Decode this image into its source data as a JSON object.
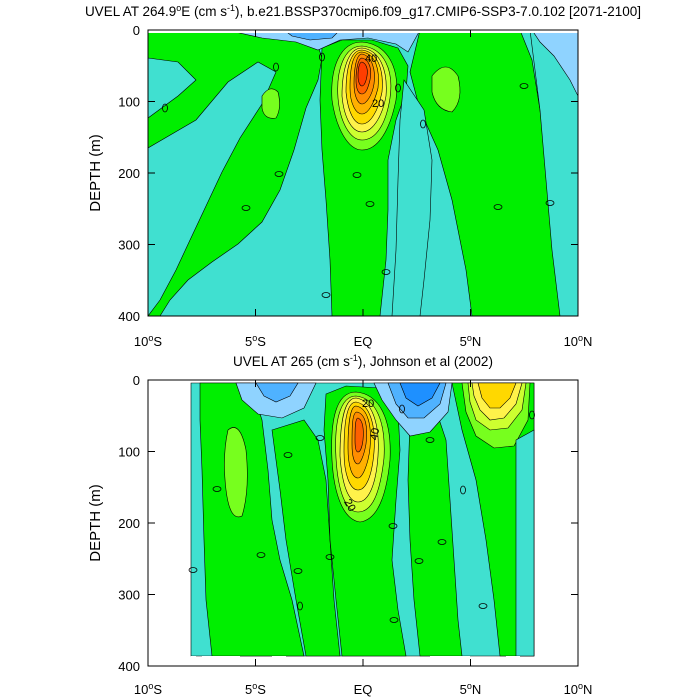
{
  "colors": {
    "c_neg2": "#1e90ff",
    "c_neg1": "#4fb2ff",
    "c_neg0": "#8fd3ff",
    "c_zero": "#40e0d0",
    "c_pos1": "#00ef00",
    "c_pos2": "#77ff1e",
    "c_pos3": "#cdff30",
    "c_pos4": "#fff24a",
    "c_pos5": "#ffd800",
    "c_pos6": "#ffb000",
    "c_pos7": "#ff8c00",
    "c_pos8": "#ff6000",
    "c_pos9": "#ff3d00"
  },
  "chart_data": [
    {
      "type": "heatmap",
      "title_main": "UVEL AT 264.9",
      "title_deg": "o",
      "title_mid": "E (cm s",
      "title_sup": "-1",
      "title_rest": "), b.e21.BSSP370cmip6.f09_g17.CMIP6-SSP3-7.0.102 [2071-2100]",
      "ylabel": "DEPTH (m)",
      "ylim": [
        400,
        0
      ],
      "xlim": [
        -10,
        10
      ],
      "yticks": [
        "0",
        "100",
        "200",
        "300",
        "400"
      ],
      "xticks": [
        {
          "num": "10",
          "deg": "o",
          "hem": "S"
        },
        {
          "num": "5",
          "deg": "o",
          "hem": "S"
        },
        {
          "num": "EQ",
          "deg": "",
          "hem": ""
        },
        {
          "num": "5",
          "deg": "o",
          "hem": "N"
        },
        {
          "num": "10",
          "deg": "o",
          "hem": "N"
        }
      ],
      "contour_labels": [
        "0",
        "0",
        "0",
        "0",
        "0",
        "0",
        "0",
        "0",
        "0",
        "0",
        "0",
        "0",
        "0",
        "40",
        "20"
      ],
      "core_max_approx": 60
    },
    {
      "type": "heatmap",
      "title_main": "UVEL AT 265 (cm s",
      "title_sup": "-1",
      "title_rest": "), Johnson et al (2002)",
      "ylabel": "DEPTH (m)",
      "ylim": [
        400,
        0
      ],
      "xlim": [
        -10,
        10
      ],
      "yticks": [
        "0",
        "100",
        "200",
        "300",
        "400"
      ],
      "xticks": [
        {
          "num": "10",
          "deg": "o",
          "hem": "S"
        },
        {
          "num": "5",
          "deg": "o",
          "hem": "S"
        },
        {
          "num": "EQ",
          "deg": "",
          "hem": ""
        },
        {
          "num": "5",
          "deg": "o",
          "hem": "N"
        },
        {
          "num": "10",
          "deg": "o",
          "hem": "N"
        }
      ],
      "contour_labels": [
        "0",
        "0",
        "0",
        "0",
        "0",
        "0",
        "0",
        "0",
        "0",
        "0",
        "0",
        "0",
        "0",
        "0",
        "0",
        "0",
        "0",
        "20",
        "40",
        "20"
      ],
      "core_max_approx": 60
    }
  ]
}
